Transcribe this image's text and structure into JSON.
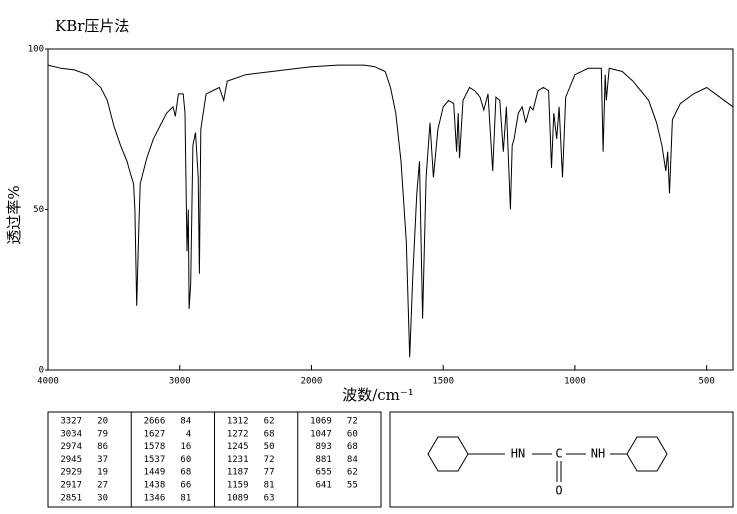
{
  "chart_data": {
    "type": "line",
    "title": "KBr压片法",
    "x_label": "波数/cm⁻¹",
    "y_label": "透过率%",
    "xlim": [
      4000,
      400
    ],
    "xticks": [
      4000,
      3000,
      2000,
      1500,
      1000,
      500
    ],
    "x_expand_below": 2000,
    "ylim": [
      0,
      100
    ],
    "yticks": [
      0,
      50,
      100
    ],
    "color": "#000000",
    "x": [
      4000,
      3900,
      3800,
      3700,
      3600,
      3550,
      3500,
      3450,
      3400,
      3380,
      3350,
      3340,
      3327,
      3310,
      3300,
      3250,
      3200,
      3150,
      3100,
      3050,
      3034,
      3010,
      2990,
      2974,
      2960,
      2945,
      2935,
      2929,
      2917,
      2900,
      2880,
      2860,
      2851,
      2840,
      2800,
      2700,
      2666,
      2640,
      2500,
      2300,
      2100,
      2000,
      1900,
      1800,
      1760,
      1720,
      1700,
      1680,
      1660,
      1640,
      1627,
      1615,
      1600,
      1590,
      1578,
      1565,
      1550,
      1537,
      1520,
      1500,
      1480,
      1460,
      1449,
      1443,
      1438,
      1425,
      1400,
      1380,
      1360,
      1346,
      1330,
      1312,
      1300,
      1285,
      1272,
      1260,
      1245,
      1238,
      1231,
      1215,
      1200,
      1187,
      1170,
      1159,
      1140,
      1120,
      1100,
      1089,
      1080,
      1069,
      1060,
      1047,
      1035,
      1000,
      950,
      900,
      893,
      885,
      881,
      870,
      820,
      780,
      720,
      690,
      670,
      655,
      648,
      641,
      630,
      600,
      550,
      500,
      450,
      400
    ],
    "values": [
      95,
      94,
      93.5,
      92,
      88,
      84,
      76,
      70,
      65,
      62,
      58,
      50,
      20,
      45,
      58,
      66,
      72,
      76,
      80,
      82,
      79,
      86,
      86,
      86,
      80,
      37,
      50,
      19,
      27,
      70,
      74,
      60,
      30,
      75,
      86,
      88,
      84,
      90,
      92,
      93,
      94,
      94.5,
      95,
      95,
      94.5,
      93,
      88,
      80,
      65,
      40,
      4,
      30,
      55,
      65,
      16,
      60,
      77,
      60,
      75,
      82,
      84,
      83,
      68,
      80,
      66,
      84,
      88,
      87,
      85,
      81,
      86,
      62,
      85,
      84,
      68,
      82,
      50,
      70,
      72,
      80,
      82,
      77,
      82,
      81,
      87,
      88,
      87,
      63,
      80,
      72,
      82,
      60,
      85,
      92,
      94,
      94,
      68,
      92,
      84,
      94,
      93,
      90,
      84,
      77,
      70,
      62,
      68,
      55,
      78,
      83,
      86,
      88,
      85,
      82
    ]
  },
  "peak_table": {
    "columns": [
      [
        [
          "3327",
          "20"
        ],
        [
          "3034",
          "79"
        ],
        [
          "2974",
          "86"
        ],
        [
          "2945",
          "37"
        ],
        [
          "2929",
          "19"
        ],
        [
          "2917",
          "27"
        ],
        [
          "2851",
          "30"
        ]
      ],
      [
        [
          "2666",
          "84"
        ],
        [
          "1627",
          "4"
        ],
        [
          "1578",
          "16"
        ],
        [
          "1537",
          "60"
        ],
        [
          "1449",
          "68"
        ],
        [
          "1438",
          "66"
        ],
        [
          "1346",
          "81"
        ]
      ],
      [
        [
          "1312",
          "62"
        ],
        [
          "1272",
          "68"
        ],
        [
          "1245",
          "50"
        ],
        [
          "1231",
          "72"
        ],
        [
          "1187",
          "77"
        ],
        [
          "1159",
          "81"
        ],
        [
          "1089",
          "63"
        ]
      ],
      [
        [
          "1069",
          "72"
        ],
        [
          "1047",
          "60"
        ],
        [
          "893",
          "68"
        ],
        [
          "881",
          "84"
        ],
        [
          "655",
          "62"
        ],
        [
          "641",
          "55"
        ]
      ]
    ]
  },
  "structure": {
    "labels": [
      "HN",
      "C",
      "NH",
      "O"
    ]
  }
}
